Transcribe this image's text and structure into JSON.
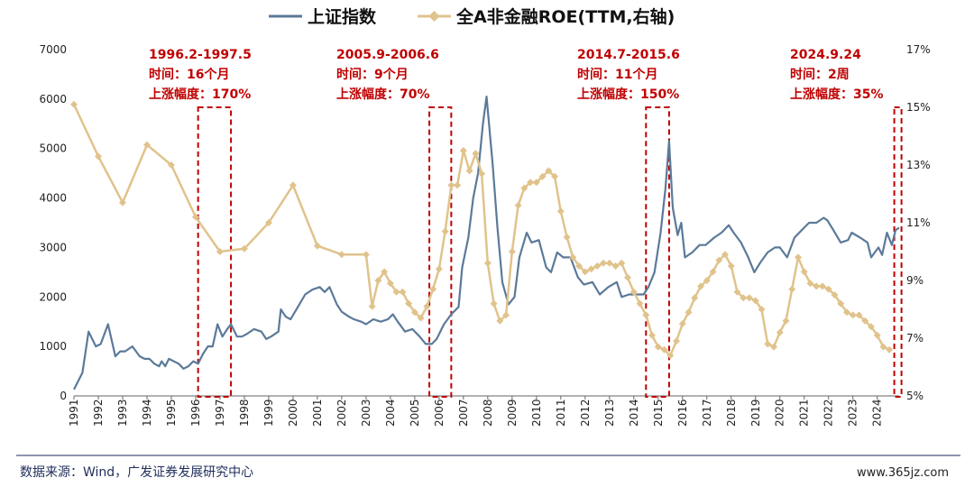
{
  "chart_data": {
    "type": "line",
    "title": "",
    "legend": {
      "placement": "top-center",
      "items": [
        {
          "label": "上证指数",
          "color": "#5b7a99",
          "marker": "line"
        },
        {
          "label": "全A非金融ROE(TTM,右轴)",
          "color": "#e0c38c",
          "marker": "diamond"
        }
      ]
    },
    "x_axis": {
      "range": [
        1991,
        2024.9
      ],
      "ticks": [
        "1991",
        "1992",
        "1993",
        "1994",
        "1995",
        "1996",
        "1997",
        "1998",
        "1999",
        "2000",
        "2001",
        "2002",
        "2003",
        "2004",
        "2005",
        "2006",
        "2007",
        "2008",
        "2009",
        "2010",
        "2011",
        "2012",
        "2013",
        "2014",
        "2015",
        "2016",
        "2017",
        "2018",
        "2019",
        "2020",
        "2021",
        "2022",
        "2023",
        "2024"
      ]
    },
    "y_axis_left": {
      "range": [
        0,
        7000
      ],
      "ticks": [
        "0",
        "1000",
        "2000",
        "3000",
        "4000",
        "5000",
        "6000",
        "7000"
      ]
    },
    "y_axis_right": {
      "range": [
        5,
        17
      ],
      "unit": "%",
      "ticks": [
        "5%",
        "7%",
        "9%",
        "11%",
        "13%",
        "15%",
        "17%"
      ]
    },
    "series": [
      {
        "name": "上证指数",
        "axis": "left",
        "color": "#5b7a99",
        "x": [
          1991.0,
          1991.35,
          1991.6,
          1991.9,
          1992.1,
          1992.4,
          1992.7,
          1992.9,
          1993.1,
          1993.4,
          1993.7,
          1993.9,
          1994.1,
          1994.3,
          1994.5,
          1994.6,
          1994.75,
          1994.9,
          1995.1,
          1995.3,
          1995.5,
          1995.7,
          1995.9,
          1996.1,
          1996.3,
          1996.5,
          1996.7,
          1996.9,
          1997.1,
          1997.3,
          1997.45,
          1997.7,
          1997.9,
          1998.1,
          1998.4,
          1998.7,
          1998.9,
          1999.1,
          1999.4,
          1999.5,
          1999.7,
          1999.9,
          2000.2,
          2000.5,
          2000.8,
          2001.1,
          2001.3,
          2001.5,
          2001.8,
          2002.0,
          2002.3,
          2002.5,
          2002.8,
          2003.0,
          2003.3,
          2003.6,
          2003.9,
          2004.1,
          2004.3,
          2004.6,
          2004.9,
          2005.2,
          2005.45,
          2005.7,
          2005.9,
          2006.2,
          2006.5,
          2006.8,
          2006.95,
          2007.2,
          2007.4,
          2007.6,
          2007.8,
          2007.95,
          2008.2,
          2008.4,
          2008.6,
          2008.85,
          2009.1,
          2009.3,
          2009.6,
          2009.8,
          2010.1,
          2010.4,
          2010.6,
          2010.85,
          2011.1,
          2011.4,
          2011.7,
          2011.95,
          2012.3,
          2012.6,
          2012.95,
          2013.3,
          2013.5,
          2013.8,
          2014.1,
          2014.4,
          2014.6,
          2014.85,
          2015.1,
          2015.3,
          2015.45,
          2015.6,
          2015.8,
          2015.95,
          2016.1,
          2016.4,
          2016.7,
          2016.95,
          2017.3,
          2017.6,
          2017.9,
          2018.1,
          2018.4,
          2018.7,
          2018.95,
          2019.2,
          2019.5,
          2019.8,
          2020.0,
          2020.3,
          2020.6,
          2020.9,
          2021.2,
          2021.5,
          2021.8,
          2021.95,
          2022.2,
          2022.5,
          2022.8,
          2022.95,
          2023.3,
          2023.6,
          2023.75,
          2023.9,
          2024.05,
          2024.2,
          2024.4,
          2024.6,
          2024.75,
          2024.9
        ],
        "values": [
          130,
          470,
          1300,
          1000,
          1050,
          1450,
          800,
          900,
          900,
          1000,
          800,
          750,
          750,
          650,
          600,
          700,
          600,
          750,
          700,
          650,
          550,
          600,
          700,
          650,
          850,
          1000,
          1000,
          1450,
          1200,
          1350,
          1450,
          1200,
          1200,
          1250,
          1350,
          1300,
          1150,
          1200,
          1300,
          1750,
          1600,
          1550,
          1800,
          2050,
          2150,
          2200,
          2100,
          2200,
          1850,
          1700,
          1600,
          1550,
          1500,
          1450,
          1550,
          1500,
          1550,
          1650,
          1500,
          1300,
          1350,
          1200,
          1050,
          1050,
          1150,
          1450,
          1650,
          1800,
          2600,
          3200,
          4000,
          4500,
          5500,
          6050,
          4700,
          3400,
          2300,
          1850,
          2000,
          2800,
          3300,
          3100,
          3150,
          2600,
          2500,
          2900,
          2800,
          2800,
          2400,
          2250,
          2300,
          2050,
          2200,
          2300,
          2000,
          2050,
          2050,
          2050,
          2200,
          2500,
          3300,
          4200,
          5150,
          3800,
          3250,
          3500,
          2800,
          2900,
          3050,
          3050,
          3200,
          3300,
          3450,
          3300,
          3100,
          2800,
          2500,
          2700,
          2900,
          3000,
          3000,
          2800,
          3200,
          3350,
          3500,
          3500,
          3600,
          3550,
          3350,
          3100,
          3150,
          3300,
          3200,
          3100,
          2800,
          2900,
          3000,
          2850,
          3300,
          3050,
          3350,
          3400
        ]
      },
      {
        "name": "全A非金融ROE(TTM,右轴)",
        "axis": "right",
        "color": "#e0c38c",
        "x": [
          1991.0,
          1992.0,
          1993.0,
          1994.0,
          1995.0,
          1996.0,
          1997.0,
          1998.0,
          1999.0,
          2000.0,
          2001.0,
          2002.0,
          2003.0,
          2003.25,
          2003.5,
          2003.75,
          2004.0,
          2004.25,
          2004.5,
          2004.75,
          2005.0,
          2005.25,
          2005.5,
          2005.75,
          2006.0,
          2006.25,
          2006.5,
          2006.75,
          2007.0,
          2007.25,
          2007.5,
          2007.75,
          2008.0,
          2008.25,
          2008.5,
          2008.75,
          2009.0,
          2009.25,
          2009.5,
          2009.75,
          2010.0,
          2010.25,
          2010.5,
          2010.75,
          2011.0,
          2011.25,
          2011.5,
          2011.75,
          2012.0,
          2012.25,
          2012.5,
          2012.75,
          2013.0,
          2013.25,
          2013.5,
          2013.75,
          2014.0,
          2014.25,
          2014.5,
          2014.75,
          2015.0,
          2015.25,
          2015.5,
          2015.75,
          2016.0,
          2016.25,
          2016.5,
          2016.75,
          2017.0,
          2017.25,
          2017.5,
          2017.75,
          2018.0,
          2018.25,
          2018.5,
          2018.75,
          2019.0,
          2019.25,
          2019.5,
          2019.75,
          2020.0,
          2020.25,
          2020.5,
          2020.75,
          2021.0,
          2021.25,
          2021.5,
          2021.75,
          2022.0,
          2022.25,
          2022.5,
          2022.75,
          2023.0,
          2023.25,
          2023.5,
          2023.75,
          2024.0,
          2024.25,
          2024.5
        ],
        "values": [
          15.1,
          13.3,
          11.7,
          13.7,
          13.0,
          11.2,
          10.0,
          10.1,
          11.0,
          12.3,
          10.2,
          9.9,
          9.9,
          8.1,
          9.0,
          9.3,
          8.9,
          8.6,
          8.6,
          8.2,
          7.9,
          7.7,
          8.1,
          8.7,
          9.4,
          10.7,
          12.3,
          12.3,
          13.5,
          12.8,
          13.4,
          12.7,
          9.6,
          8.2,
          7.6,
          7.8,
          10.0,
          11.6,
          12.2,
          12.4,
          12.4,
          12.6,
          12.8,
          12.6,
          11.4,
          10.5,
          9.8,
          9.5,
          9.3,
          9.4,
          9.5,
          9.6,
          9.6,
          9.5,
          9.6,
          9.1,
          8.6,
          8.2,
          7.8,
          7.1,
          6.7,
          6.6,
          6.4,
          6.9,
          7.5,
          7.9,
          8.4,
          8.8,
          9.0,
          9.3,
          9.7,
          9.9,
          9.5,
          8.6,
          8.4,
          8.4,
          8.3,
          8.0,
          6.8,
          6.7,
          7.2,
          7.6,
          8.7,
          9.8,
          9.3,
          8.9,
          8.8,
          8.8,
          8.7,
          8.5,
          8.2,
          7.9,
          7.8,
          7.8,
          7.6,
          7.4,
          7.1,
          6.7,
          6.6
        ]
      }
    ],
    "annotations": [
      {
        "x_range": [
          1996.1,
          1997.45
        ],
        "lines": [
          "1996.2-1997.5",
          "时间：16个月",
          "上涨幅度：170%"
        ]
      },
      {
        "x_range": [
          2005.6,
          2006.5
        ],
        "lines": [
          "2005.9-2006.6",
          "时间：9个月",
          "上涨幅度：70%"
        ]
      },
      {
        "x_range": [
          2014.5,
          2015.45
        ],
        "lines": [
          "2014.7-2015.6",
          "时间：11个月",
          "上涨幅度：150%"
        ]
      },
      {
        "x_range": [
          2024.7,
          2024.95
        ],
        "lines": [
          "2024.9.24",
          "时间：2周",
          "上涨幅度：35%"
        ]
      }
    ],
    "grid": false
  },
  "footer": {
    "source": "数据来源：Wind，广发证券发展研究中心",
    "watermark": "www.365jz.com"
  }
}
